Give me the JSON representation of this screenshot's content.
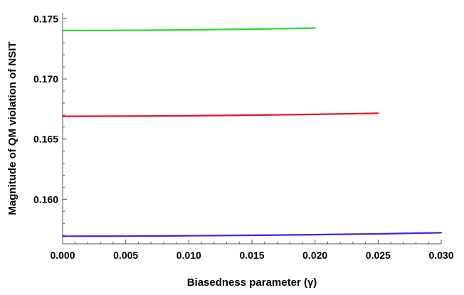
{
  "chart_data": {
    "type": "line",
    "xlabel": "Biasedness parameter (γ)",
    "ylabel": "Magnitude of QM violation of NSIT",
    "xlim": [
      0,
      0.03
    ],
    "ylim": [
      0.1563,
      0.1755
    ],
    "x_ticks": [
      "0.000",
      "0.005",
      "0.010",
      "0.015",
      "0.020",
      "0.025",
      "0.030"
    ],
    "y_ticks": [
      "0.160",
      "0.165",
      "0.170",
      "0.175"
    ],
    "grid": false,
    "legend": "none",
    "series": [
      {
        "color": "#22dd22",
        "x": [
          0.0,
          0.005,
          0.01,
          0.015,
          0.02
        ],
        "y": [
          0.17403,
          0.17404,
          0.17408,
          0.17414,
          0.17423
        ]
      },
      {
        "color": "#e8141e",
        "x": [
          0.0,
          0.005,
          0.01,
          0.015,
          0.02,
          0.025
        ],
        "y": [
          0.1669,
          0.16691,
          0.16694,
          0.16699,
          0.16706,
          0.16715
        ]
      },
      {
        "color": "#4b1ee0",
        "x": [
          0.0,
          0.005,
          0.01,
          0.015,
          0.02,
          0.025,
          0.03
        ],
        "y": [
          0.15693,
          0.15694,
          0.15697,
          0.15701,
          0.15706,
          0.15713,
          0.15722
        ]
      }
    ]
  }
}
